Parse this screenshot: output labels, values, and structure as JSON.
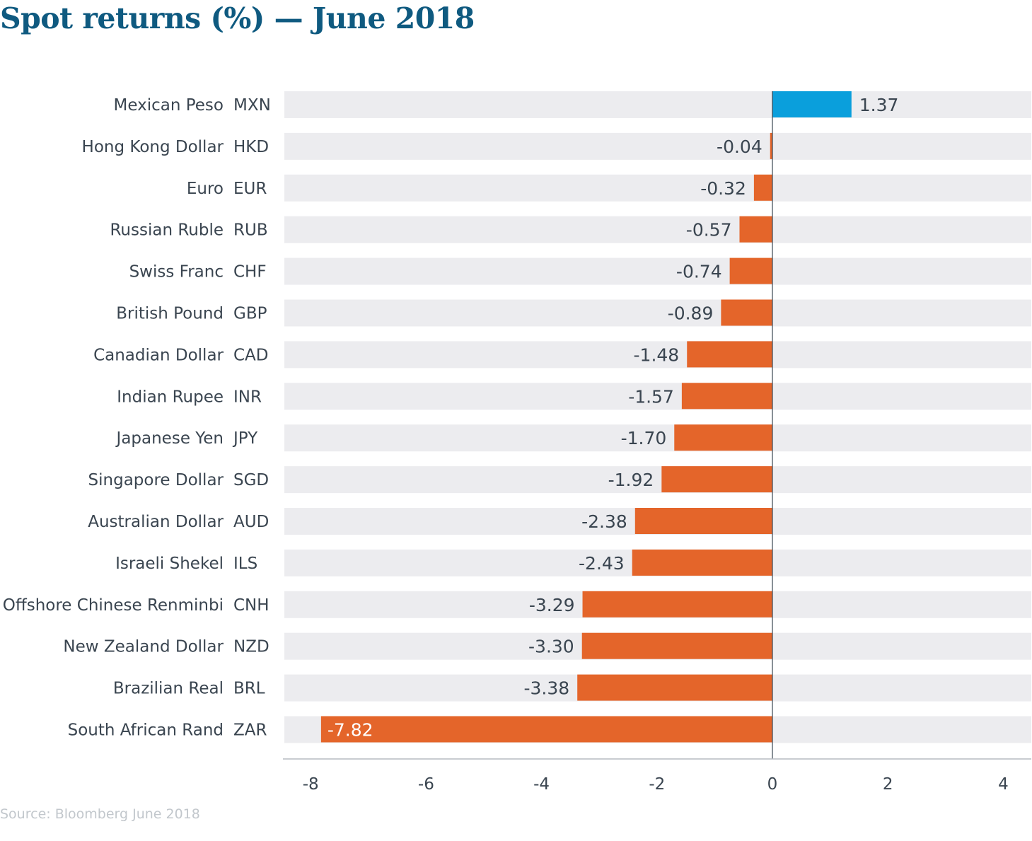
{
  "title": "Spot returns (%) — June 2018",
  "source": "Source: Bloomberg June 2018",
  "colors": {
    "positive": "#0a9fdc",
    "negative": "#e4652a",
    "row_background": "#ececef",
    "text": "#3a4550",
    "title": "#0f5a80",
    "source": "#c2c7cc",
    "zero_line": "#3a4550",
    "axis": "#b7bcc2",
    "inside_label": "#ffffff"
  },
  "chart_data": {
    "type": "bar",
    "orientation": "horizontal",
    "categories": [
      {
        "name": "Mexican Peso",
        "code": "MXN"
      },
      {
        "name": "Hong Kong Dollar",
        "code": "HKD"
      },
      {
        "name": "Euro",
        "code": "EUR"
      },
      {
        "name": "Russian Ruble",
        "code": "RUB"
      },
      {
        "name": "Swiss Franc",
        "code": "CHF"
      },
      {
        "name": "British Pound",
        "code": "GBP"
      },
      {
        "name": "Canadian Dollar",
        "code": "CAD"
      },
      {
        "name": "Indian Rupee",
        "code": "INR"
      },
      {
        "name": "Japanese Yen",
        "code": "JPY"
      },
      {
        "name": "Singapore Dollar",
        "code": "SGD"
      },
      {
        "name": "Australian Dollar",
        "code": "AUD"
      },
      {
        "name": "Israeli Shekel",
        "code": "ILS"
      },
      {
        "name": "Offshore Chinese Renminbi",
        "code": "CNH"
      },
      {
        "name": "New Zealand Dollar",
        "code": "NZD"
      },
      {
        "name": "Brazilian Real",
        "code": "BRL"
      },
      {
        "name": "South African Rand",
        "code": "ZAR"
      }
    ],
    "values": [
      1.37,
      -0.04,
      -0.32,
      -0.57,
      -0.74,
      -0.89,
      -1.48,
      -1.57,
      -1.7,
      -1.92,
      -2.38,
      -2.43,
      -3.29,
      -3.3,
      -3.38,
      -7.82
    ],
    "value_labels": [
      "1.37",
      "-0.04",
      "-0.32",
      "-0.57",
      "-0.74",
      "-0.89",
      "-1.48",
      "-1.57",
      "-1.70",
      "-1.92",
      "-2.38",
      "-2.43",
      "-3.29",
      "-3.30",
      "-3.38",
      "-7.82"
    ],
    "xlim": [
      -8.4,
      4.5
    ],
    "xticks": [
      -8,
      -6,
      -4,
      -2,
      0,
      2,
      4
    ],
    "xtick_labels": [
      "-8",
      "-6",
      "-4",
      "-2",
      "0",
      "2",
      "4"
    ],
    "grid": false,
    "legend": "none"
  }
}
